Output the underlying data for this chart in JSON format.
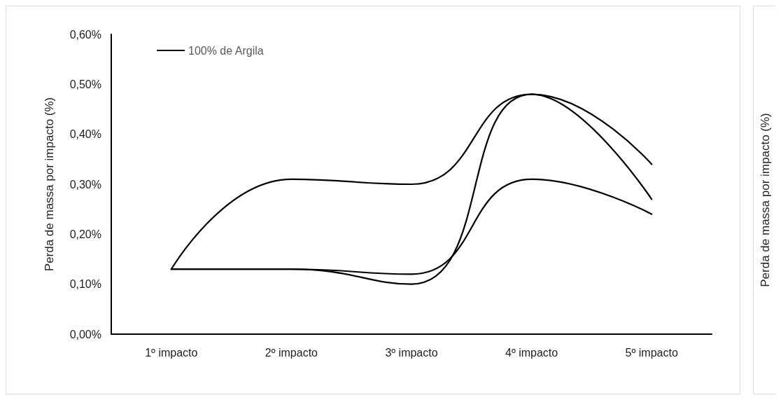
{
  "chart_data": [
    {
      "type": "line",
      "ylabel": "Perda de massa por impacto (%)",
      "categories": [
        "1º impacto",
        "2º impacto",
        "3º impacto",
        "4º impacto",
        "5º impacto"
      ],
      "series": [
        {
          "name": "100% de Argila",
          "color": "#000000",
          "values": [
            0.13,
            0.31,
            0.3,
            0.48,
            0.34
          ]
        },
        {
          "color": "#000000",
          "values": [
            0.13,
            0.13,
            0.1,
            0.48,
            0.27
          ]
        },
        {
          "color": "#000000",
          "values": [
            0.13,
            0.13,
            0.12,
            0.31,
            0.24
          ]
        }
      ],
      "ylim": [
        0,
        0.6
      ],
      "yticks": [
        {
          "value": 0,
          "label": "0,00%"
        },
        {
          "value": 0.1,
          "label": "0,10%"
        },
        {
          "value": 0.2,
          "label": "0,20%"
        },
        {
          "value": 0.3,
          "label": "0,30%"
        },
        {
          "value": 0.4,
          "label": "0,40%"
        },
        {
          "value": 0.5,
          "label": "0,50%"
        },
        {
          "value": 0.6,
          "label": "0,60%"
        }
      ],
      "grid": false,
      "legend": "top left",
      "marker": "none",
      "line_style": "solid"
    },
    {
      "type": "other",
      "ylabel": "Perda de massa por impacto (%)"
    }
  ]
}
